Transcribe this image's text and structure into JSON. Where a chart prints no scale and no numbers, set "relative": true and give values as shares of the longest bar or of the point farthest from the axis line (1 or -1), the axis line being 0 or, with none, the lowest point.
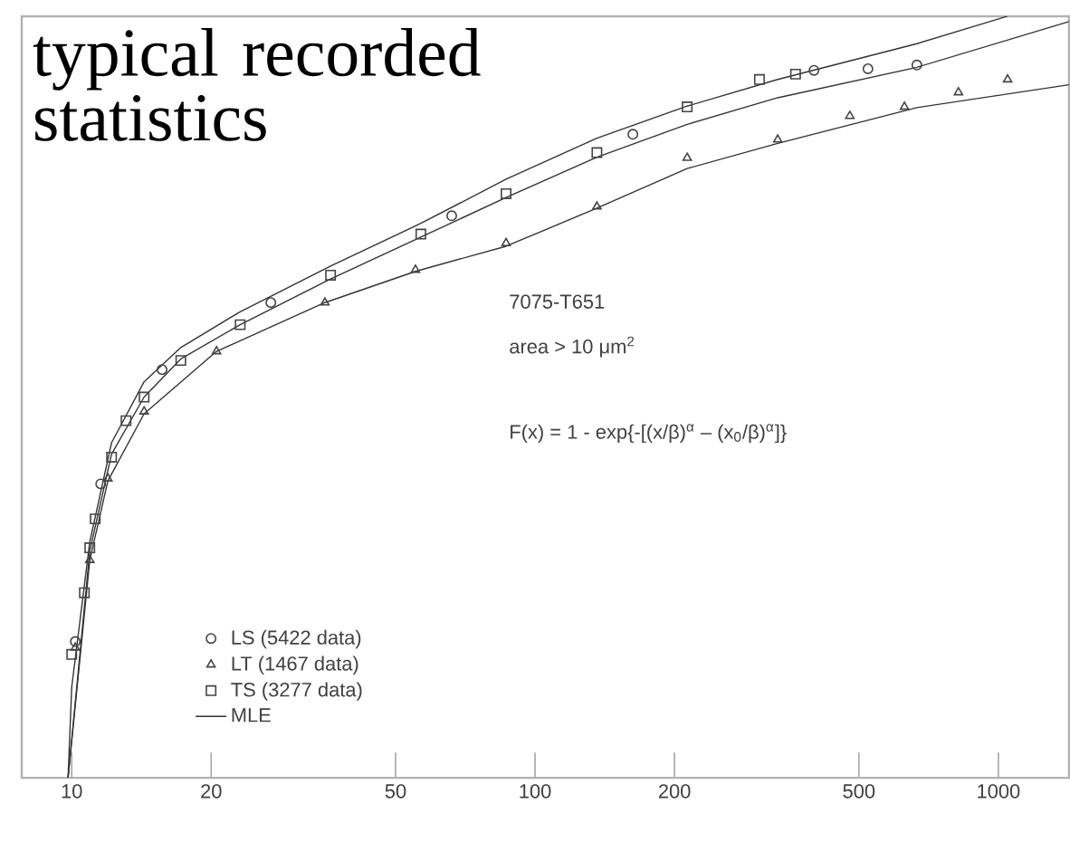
{
  "chart_data": {
    "type": "scatter",
    "relative": true,
    "log": "x",
    "xlim": [
      7.8,
      1420
    ],
    "xticks": [
      10,
      20,
      50,
      100,
      200,
      500,
      1000
    ],
    "legend": "bottom left",
    "grid": false,
    "annotations": [
      "typical recorded statistics",
      "7075-T651",
      "area > 10 μm$^{2}$",
      "F(x) = 1 - exp{-[(x/β)$^{α}$ – (x$_{0}$/β)$^{α}$]}"
    ],
    "series": [
      {
        "name": "LS (5422 data)",
        "marker": "circle",
        "color": "#444444",
        "x": [
          10.18,
          11.55,
          15.67,
          26.9,
          66.1,
          162.6,
          400,
          523,
          667
        ],
        "values": [
          0.179,
          0.386,
          0.536,
          0.624,
          0.738,
          0.845,
          0.929,
          0.931,
          0.936
        ]
      },
      {
        "name": "LT (1467 data)",
        "marker": "triangle",
        "color": "#444444",
        "x": [
          10.18,
          10.94,
          11.97,
          14.33,
          20.54,
          35.2,
          55.2,
          86.6,
          136,
          213,
          334,
          478,
          627,
          820,
          1047
        ],
        "values": [
          0.171,
          0.286,
          0.393,
          0.481,
          0.56,
          0.624,
          0.667,
          0.702,
          0.75,
          0.814,
          0.838,
          0.869,
          0.881,
          0.9,
          0.917
        ]
      },
      {
        "name": "TS (3277 data)",
        "marker": "square",
        "color": "#444444",
        "x": [
          10,
          10.65,
          10.94,
          11.24,
          12.19,
          13.1,
          14.33,
          17.2,
          23.1,
          36.2,
          56.7,
          86.6,
          136,
          213,
          305,
          365
        ],
        "values": [
          0.162,
          0.243,
          0.302,
          0.34,
          0.421,
          0.469,
          0.5,
          0.548,
          0.595,
          0.66,
          0.714,
          0.767,
          0.821,
          0.881,
          0.917,
          0.924
        ]
      },
      {
        "name": "MLE",
        "type": "line",
        "marker": "none",
        "color": "#333333",
        "x": [
          9.82,
          10,
          10.94,
          12.19,
          14.33,
          17.2,
          23.1,
          36.2,
          56.7,
          86.6,
          136,
          213,
          334,
          667,
          1047
        ],
        "values": [
          0,
          0.119,
          0.31,
          0.44,
          0.52,
          0.565,
          0.612,
          0.672,
          0.728,
          0.786,
          0.84,
          0.882,
          0.917,
          0.964,
          1
        ]
      },
      {
        "type": "line",
        "marker": "none",
        "color": "#333333",
        "x": [
          9.82,
          10.94,
          12.19,
          14.33,
          17.2,
          23.1,
          36.2,
          56.7,
          86.6,
          136,
          213,
          334,
          667,
          1420
        ],
        "values": [
          0,
          0.298,
          0.425,
          0.5,
          0.55,
          0.595,
          0.655,
          0.71,
          0.762,
          0.815,
          0.858,
          0.893,
          0.933,
          0.993
        ]
      },
      {
        "type": "line",
        "marker": "none",
        "color": "#333333",
        "x": [
          9.82,
          10.94,
          11.97,
          14.33,
          20.54,
          35.2,
          55.2,
          86.6,
          136,
          213,
          334,
          667,
          1420
        ],
        "values": [
          0,
          0.286,
          0.39,
          0.478,
          0.56,
          0.624,
          0.665,
          0.698,
          0.748,
          0.8,
          0.833,
          0.88,
          0.91
        ]
      }
    ]
  }
}
